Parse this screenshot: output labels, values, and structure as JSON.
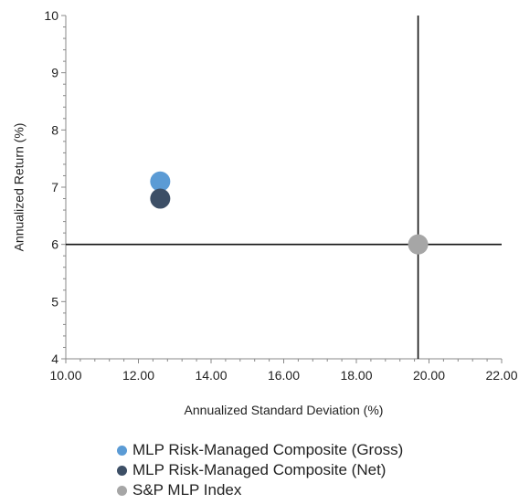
{
  "chart_data": {
    "type": "scatter",
    "xlabel": "Annualized Standard Deviation (%)",
    "ylabel": "Annualized Return  (%)",
    "xlim": [
      10,
      22
    ],
    "ylim": [
      4,
      10
    ],
    "x_ticks": [
      "10.00",
      "12.00",
      "14.00",
      "16.00",
      "18.00",
      "20.00",
      "22.00"
    ],
    "y_ticks": [
      "4",
      "5",
      "6",
      "7",
      "8",
      "9",
      "10"
    ],
    "reference_lines": {
      "x": 19.7,
      "y": 6.0
    },
    "grid": false,
    "legend_position": "bottom",
    "series": [
      {
        "name": "MLP Risk-Managed Composite (Gross)",
        "color": "#5b9bd5",
        "points": [
          {
            "x": 12.6,
            "y": 7.1
          }
        ]
      },
      {
        "name": "MLP Risk-Managed Composite (Net)",
        "color": "#3d4f66",
        "points": [
          {
            "x": 12.6,
            "y": 6.8
          }
        ]
      },
      {
        "name": "S&P MLP Index",
        "color": "#a6a6a6",
        "points": [
          {
            "x": 19.7,
            "y": 6.0
          }
        ]
      }
    ]
  }
}
